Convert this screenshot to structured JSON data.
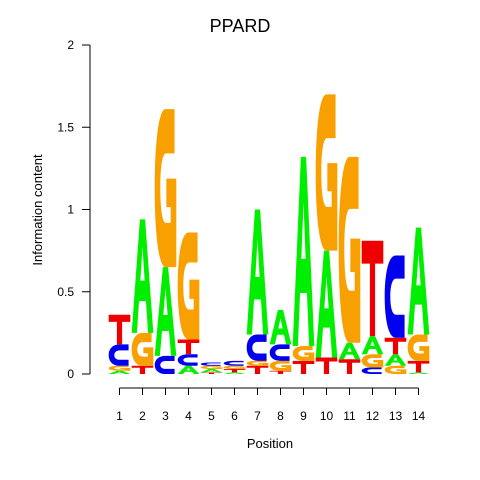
{
  "chart_data": {
    "type": "sequence-logo",
    "title": "PPARD",
    "xlabel": "Position",
    "ylabel": "Information content",
    "ylim": [
      0,
      2
    ],
    "y_ticks": [
      "0",
      "0.5",
      "1",
      "1.5",
      "2"
    ],
    "x_ticks": [
      "1",
      "2",
      "3",
      "4",
      "5",
      "6",
      "7",
      "8",
      "9",
      "10",
      "11",
      "12",
      "13",
      "14"
    ],
    "colors": {
      "A": "#00ee00",
      "C": "#0000ee",
      "G": "#f8a000",
      "T": "#ee0000"
    },
    "positions": [
      {
        "position": 1,
        "letters": [
          {
            "base": "A",
            "height": 0.02
          },
          {
            "base": "G",
            "height": 0.03
          },
          {
            "base": "C",
            "height": 0.13
          },
          {
            "base": "T",
            "height": 0.18
          }
        ]
      },
      {
        "position": 2,
        "letters": [
          {
            "base": "T",
            "height": 0.05
          },
          {
            "base": "G",
            "height": 0.2
          },
          {
            "base": "A",
            "height": 0.69
          }
        ]
      },
      {
        "position": 3,
        "letters": [
          {
            "base": "C",
            "height": 0.11
          },
          {
            "base": "A",
            "height": 0.54
          },
          {
            "base": "G",
            "height": 0.96
          }
        ]
      },
      {
        "position": 4,
        "letters": [
          {
            "base": "A",
            "height": 0.05
          },
          {
            "base": "C",
            "height": 0.07
          },
          {
            "base": "T",
            "height": 0.09
          },
          {
            "base": "G",
            "height": 0.65
          }
        ]
      },
      {
        "position": 5,
        "letters": [
          {
            "base": "T",
            "height": 0.01
          },
          {
            "base": "A",
            "height": 0.02
          },
          {
            "base": "G",
            "height": 0.02
          },
          {
            "base": "C",
            "height": 0.02
          }
        ]
      },
      {
        "position": 6,
        "letters": [
          {
            "base": "A",
            "height": 0.01
          },
          {
            "base": "T",
            "height": 0.02
          },
          {
            "base": "G",
            "height": 0.02
          },
          {
            "base": "C",
            "height": 0.03
          }
        ]
      },
      {
        "position": 7,
        "letters": [
          {
            "base": "T",
            "height": 0.05
          },
          {
            "base": "G",
            "height": 0.03
          },
          {
            "base": "C",
            "height": 0.16
          },
          {
            "base": "A",
            "height": 0.76
          }
        ]
      },
      {
        "position": 8,
        "letters": [
          {
            "base": "T",
            "height": 0.02
          },
          {
            "base": "G",
            "height": 0.06
          },
          {
            "base": "C",
            "height": 0.1
          },
          {
            "base": "A",
            "height": 0.21
          }
        ]
      },
      {
        "position": 9,
        "letters": [
          {
            "base": "T",
            "height": 0.08
          },
          {
            "base": "G",
            "height": 0.09
          },
          {
            "base": "A",
            "height": 1.15
          }
        ]
      },
      {
        "position": 10,
        "letters": [
          {
            "base": "T",
            "height": 0.1
          },
          {
            "base": "A",
            "height": 0.65
          },
          {
            "base": "G",
            "height": 0.95
          }
        ]
      },
      {
        "position": 11,
        "letters": [
          {
            "base": "T",
            "height": 0.09
          },
          {
            "base": "A",
            "height": 0.1
          },
          {
            "base": "G",
            "height": 1.13
          }
        ]
      },
      {
        "position": 12,
        "letters": [
          {
            "base": "C",
            "height": 0.04
          },
          {
            "base": "G",
            "height": 0.08
          },
          {
            "base": "A",
            "height": 0.11
          },
          {
            "base": "T",
            "height": 0.58
          }
        ]
      },
      {
        "position": 13,
        "letters": [
          {
            "base": "G",
            "height": 0.05
          },
          {
            "base": "A",
            "height": 0.07
          },
          {
            "base": "T",
            "height": 0.1
          },
          {
            "base": "C",
            "height": 0.5
          }
        ]
      },
      {
        "position": 14,
        "letters": [
          {
            "base": "A",
            "height": 0.01
          },
          {
            "base": "T",
            "height": 0.07
          },
          {
            "base": "G",
            "height": 0.16
          },
          {
            "base": "A",
            "height": 0.65
          }
        ]
      }
    ]
  }
}
